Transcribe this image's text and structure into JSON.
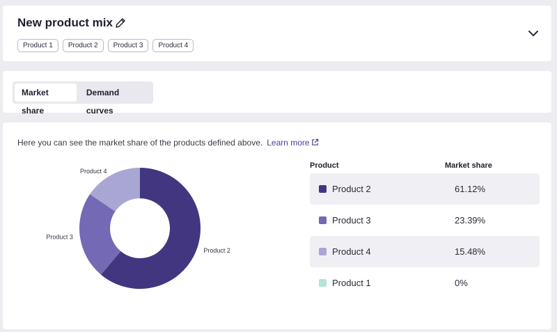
{
  "header": {
    "title": "New product mix",
    "chips": [
      "Product 1",
      "Product 2",
      "Product 3",
      "Product 4"
    ]
  },
  "tabs": [
    {
      "label": "Market share",
      "active": true
    },
    {
      "label": "Demand curves",
      "active": false
    }
  ],
  "main": {
    "intro_text": "Here you can see the market share of the products defined above.",
    "learn_more": "Learn more"
  },
  "table": {
    "col_product": "Product",
    "col_share": "Market share",
    "rows": [
      {
        "product": "Product 2",
        "share": "61.12%",
        "color": "#433680"
      },
      {
        "product": "Product 3",
        "share": "23.39%",
        "color": "#7469b4"
      },
      {
        "product": "Product 4",
        "share": "15.48%",
        "color": "#aaa6d4"
      },
      {
        "product": "Product 1",
        "share": "0%",
        "color": "#b5e3d9"
      }
    ]
  },
  "chart_data": {
    "type": "pie",
    "categories": [
      "Product 2",
      "Product 3",
      "Product 4",
      "Product 1"
    ],
    "values": [
      61.12,
      23.39,
      15.48,
      0
    ],
    "colors": [
      "#433680",
      "#7469b4",
      "#aaa6d4",
      "#b5e3d9"
    ],
    "title": "",
    "donut": true
  }
}
